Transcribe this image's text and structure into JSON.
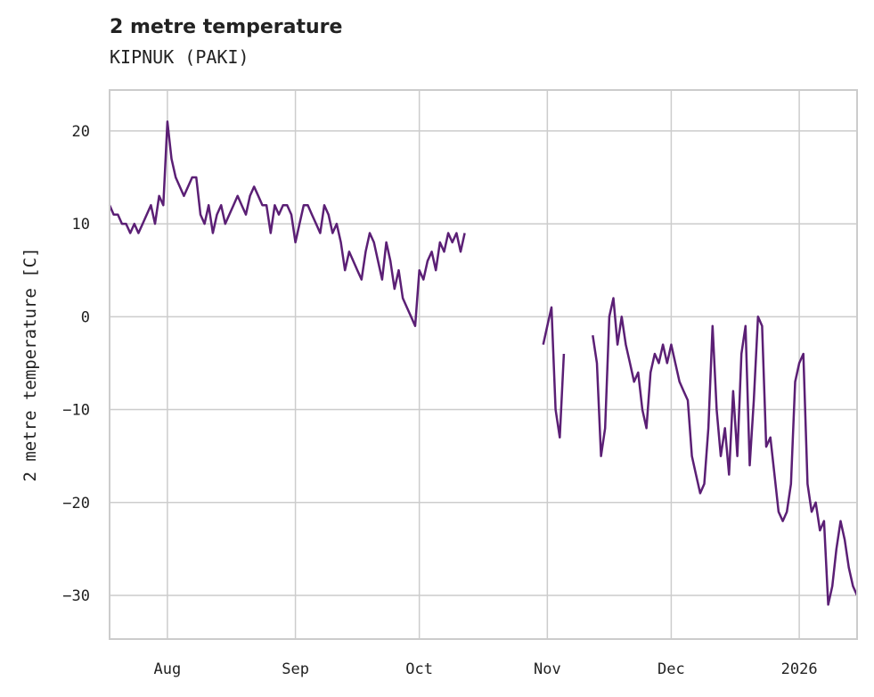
{
  "title": "2 metre temperature",
  "subtitle": "KIPNUK (PAKI)",
  "chart_data": {
    "type": "line",
    "title": "2 metre temperature",
    "subtitle": "KIPNUK (PAKI)",
    "xlabel": "",
    "ylabel": "2 metre temperature [C]",
    "ylim": [
      -34.7,
      24.4
    ],
    "xlim": [
      "2025-07-18",
      "2026-01-15"
    ],
    "yticks": [
      20,
      10,
      0,
      -10,
      -20,
      -30
    ],
    "ytick_labels": [
      "20",
      "10",
      "0",
      "−10",
      "−20",
      "−30"
    ],
    "xticks": [
      "2025-08-01",
      "2025-09-01",
      "2025-10-01",
      "2025-11-01",
      "2025-12-01",
      "2026-01-01"
    ],
    "xtick_labels": [
      "Aug",
      "Sep",
      "Oct",
      "Nov",
      "Dec",
      "2026"
    ],
    "grid": true,
    "line_color": "#5b1f75",
    "series": [
      {
        "name": "2 metre temperature",
        "start": "2025-07-18",
        "step": "1 day",
        "values": [
          12,
          11,
          11,
          10,
          10,
          9,
          10,
          9,
          10,
          11,
          12,
          10,
          13,
          12,
          21,
          17,
          15,
          14,
          13,
          14,
          15,
          15,
          11,
          10,
          12,
          9,
          11,
          12,
          10,
          11,
          12,
          13,
          12,
          11,
          13,
          14,
          13,
          12,
          12,
          9,
          12,
          11,
          12,
          12,
          11,
          8,
          10,
          12,
          12,
          11,
          10,
          9,
          12,
          11,
          9,
          10,
          8,
          5,
          7,
          6,
          5,
          4,
          7,
          9,
          8,
          6,
          4,
          8,
          6,
          3,
          5,
          2,
          1,
          0,
          -1,
          5,
          4,
          6,
          7,
          5,
          8,
          7,
          9,
          8,
          9,
          7,
          9,
          null,
          null,
          null,
          null,
          null,
          null,
          null,
          null,
          null,
          null,
          null,
          null,
          null,
          null,
          null,
          null,
          null,
          null,
          -3,
          -1,
          1,
          -10,
          -13,
          -4,
          null,
          null,
          null,
          null,
          null,
          null,
          -2,
          -5,
          -15,
          -12,
          0,
          2,
          -3,
          0,
          -3,
          -5,
          -7,
          -6,
          -10,
          -12,
          -6,
          -4,
          -5,
          -3,
          -5,
          -3,
          -5,
          -7,
          -8,
          -9,
          -15,
          -17,
          -19,
          -18,
          -12,
          -1,
          -10,
          -15,
          -12,
          -17,
          -8,
          -15,
          -4,
          -1,
          -16,
          -9,
          0,
          -1,
          -14,
          -13,
          -17,
          -21,
          -22,
          -21,
          -18,
          -7,
          -5,
          -4,
          -18,
          -21,
          -20,
          -23,
          -22,
          -31,
          -29,
          -25,
          -22,
          -24,
          -27,
          -29,
          -30
        ]
      }
    ]
  }
}
